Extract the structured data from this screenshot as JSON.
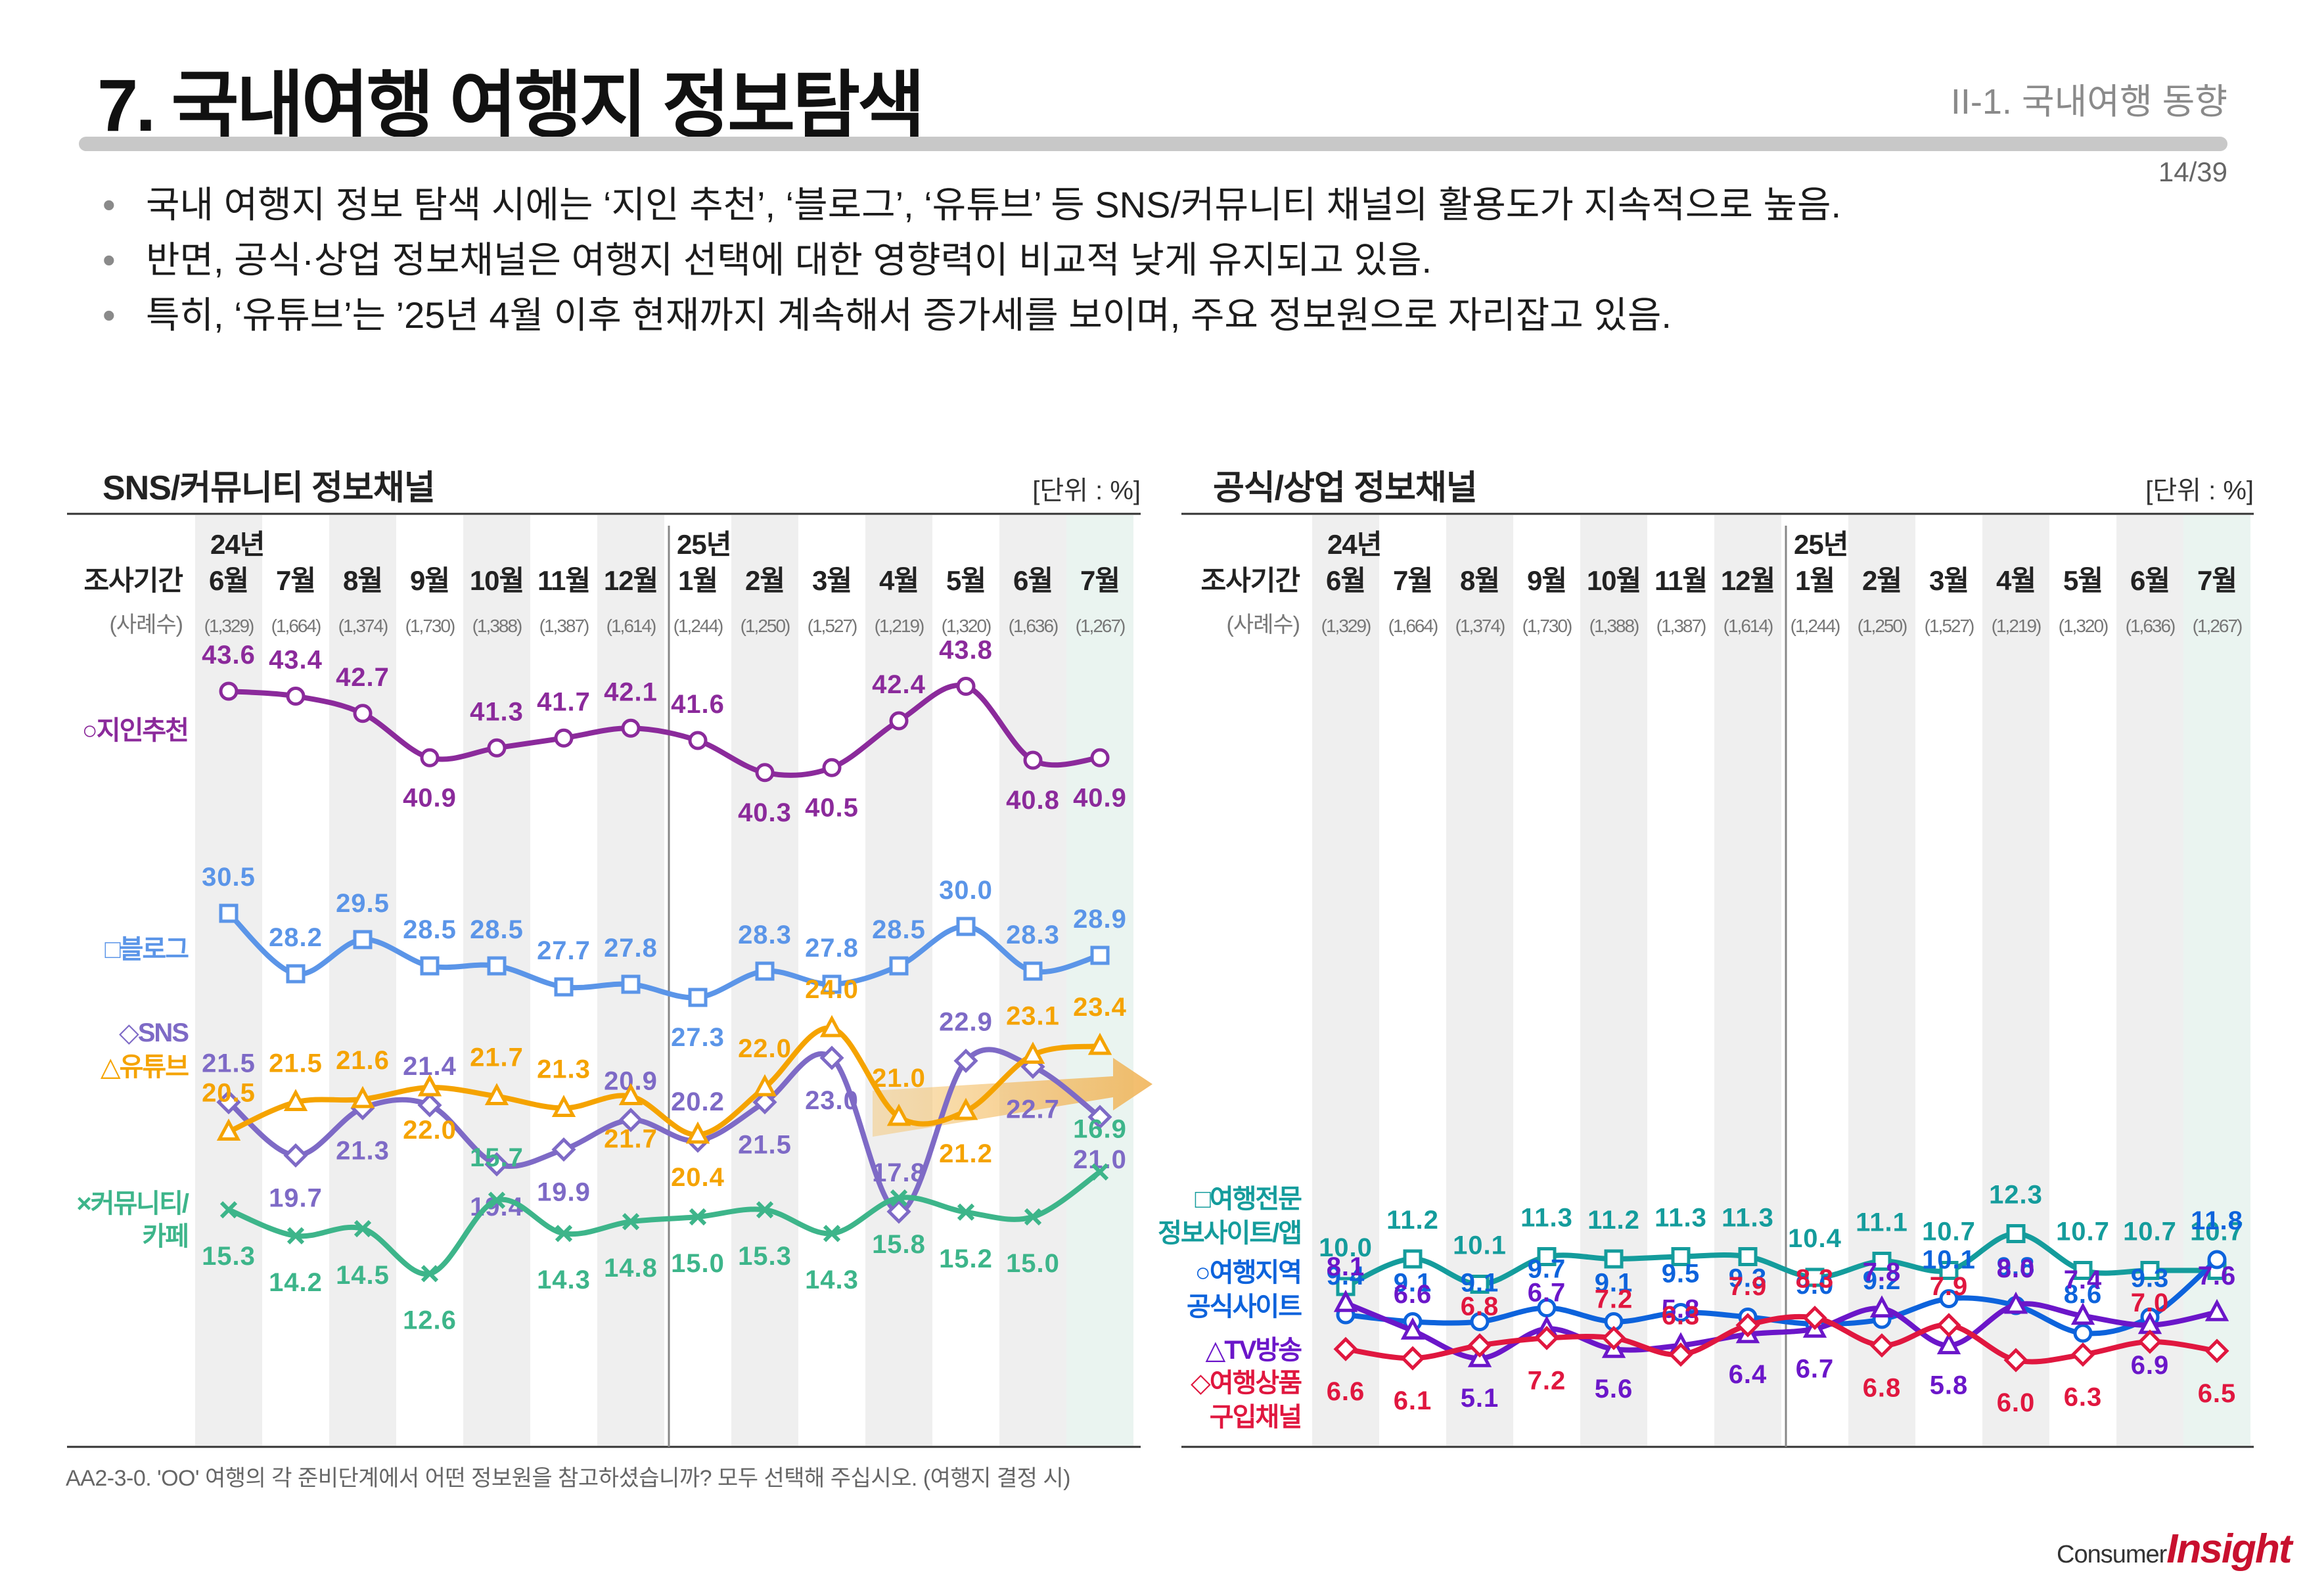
{
  "header": {
    "title": "7. 국내여행 여행지 정보탐색",
    "section": "II-1. 국내여행 동향",
    "page": "14/39"
  },
  "bullets": [
    "국내 여행지 정보 탐색 시에는 ‘지인 추천’, ‘블로그’, ‘유튜브’ 등 SNS/커뮤니티 채널의 활용도가 지속적으로 높음.",
    "반면, 공식·상업 정보채널은 여행지 선택에 대한 영향력이 비교적 낮게 유지되고 있음.",
    "특히, ‘유튜브’는 ’25년 4월 이후 현재까지 계속해서 증가세를 보이며, 주요 정보원으로 자리잡고 있음."
  ],
  "footnote": "AA2-3-0. 'OO' 여행의 각 준비단계에서 어떤 정보원을 참고하셨습니까? 모두 선택해 주십시오. (여행지 결정 시)",
  "logo": {
    "part1": "Consumer",
    "part2": "Insight"
  },
  "colors": {
    "purple": "#8B2A9B",
    "blue_light": "#5B95E8",
    "sns": "#7E6AC6",
    "youtube": "#F5A300",
    "green": "#3DB58A",
    "teal": "#149C9C",
    "blue": "#0D63DC",
    "violet": "#6B16C9",
    "red": "#E0173F",
    "title_bar": "#c8c8c8",
    "band": "#efefef",
    "recent_band": "#eaf4f0"
  },
  "chart_data": [
    {
      "type": "line",
      "title": "SNS/커뮤니티 정보채널",
      "unit": "[단위 : %]",
      "period_label": "조사기간",
      "samples_label": "(사례수)",
      "year_labels": [
        "24년",
        "25년"
      ],
      "categories": [
        "6월",
        "7월",
        "8월",
        "9월",
        "10월",
        "11월",
        "12월",
        "1월",
        "2월",
        "3월",
        "4월",
        "5월",
        "6월",
        "7월"
      ],
      "samples": [
        "(1,329)",
        "(1,664)",
        "(1,374)",
        "(1,730)",
        "(1,388)",
        "(1,387)",
        "(1,614)",
        "(1,244)",
        "(1,250)",
        "(1,527)",
        "(1,219)",
        "(1,320)",
        "(1,636)",
        "(1,267)"
      ],
      "series": [
        {
          "name": "○지인추천",
          "label_lines": [
            "○지인추천"
          ],
          "color": "#8B2A9B",
          "marker": "circle",
          "values": [
            43.6,
            43.4,
            42.7,
            40.9,
            41.3,
            41.7,
            42.1,
            41.6,
            40.3,
            40.5,
            42.4,
            43.8,
            40.8,
            40.9
          ]
        },
        {
          "name": "□블로그",
          "label_lines": [
            "□블로그"
          ],
          "color": "#5B95E8",
          "marker": "square",
          "values": [
            30.5,
            28.2,
            29.5,
            28.5,
            28.5,
            27.7,
            27.8,
            27.3,
            28.3,
            27.8,
            28.5,
            30.0,
            28.3,
            28.9
          ]
        },
        {
          "name": "◇SNS",
          "label_lines": [
            "◇SNS"
          ],
          "color": "#7E6AC6",
          "marker": "diamond",
          "values": [
            21.5,
            19.7,
            21.3,
            21.4,
            19.4,
            19.9,
            20.9,
            20.2,
            21.5,
            23.0,
            17.8,
            22.9,
            22.7,
            21.0
          ]
        },
        {
          "name": "△유튜브",
          "label_lines": [
            "△유튜브"
          ],
          "color": "#F5A300",
          "marker": "triangle",
          "values": [
            20.5,
            21.5,
            21.6,
            22.0,
            21.7,
            21.3,
            21.7,
            20.4,
            22.0,
            24.0,
            21.0,
            21.2,
            23.1,
            23.4
          ]
        },
        {
          "name": "×커뮤니티/카페",
          "label_lines": [
            "×커뮤니티/",
            "카페"
          ],
          "color": "#3DB58A",
          "marker": "cross",
          "values": [
            15.3,
            14.2,
            14.5,
            12.6,
            15.7,
            14.3,
            14.8,
            15.0,
            15.3,
            14.3,
            15.8,
            15.2,
            15.0,
            16.9
          ]
        }
      ]
    },
    {
      "type": "line",
      "title": "공식/상업 정보채널",
      "unit": "[단위 : %]",
      "period_label": "조사기간",
      "samples_label": "(사례수)",
      "year_labels": [
        "24년",
        "25년"
      ],
      "categories": [
        "6월",
        "7월",
        "8월",
        "9월",
        "10월",
        "11월",
        "12월",
        "1월",
        "2월",
        "3월",
        "4월",
        "5월",
        "6월",
        "7월"
      ],
      "samples": [
        "(1,329)",
        "(1,664)",
        "(1,374)",
        "(1,730)",
        "(1,388)",
        "(1,387)",
        "(1,614)",
        "(1,244)",
        "(1,250)",
        "(1,527)",
        "(1,219)",
        "(1,320)",
        "(1,636)",
        "(1,267)"
      ],
      "series": [
        {
          "name": "□여행전문 정보사이트/앱",
          "label_lines": [
            "□여행전문",
            "정보사이트/앱"
          ],
          "color": "#149C9C",
          "marker": "square",
          "values": [
            10.0,
            11.2,
            10.1,
            11.3,
            11.2,
            11.3,
            11.3,
            10.4,
            11.1,
            10.7,
            12.3,
            10.7,
            10.7,
            10.7
          ]
        },
        {
          "name": "○여행지역 공식사이트",
          "label_lines": [
            "○여행지역",
            "공식사이트"
          ],
          "color": "#0D63DC",
          "marker": "circle",
          "values": [
            9.4,
            9.1,
            9.1,
            9.7,
            9.1,
            9.5,
            9.3,
            9.0,
            9.2,
            10.1,
            9.8,
            8.6,
            9.3,
            11.8
          ]
        },
        {
          "name": "△TV방송",
          "label_lines": [
            "△TV방송"
          ],
          "color": "#6B16C9",
          "marker": "triangle",
          "values": [
            8.1,
            6.6,
            5.1,
            6.7,
            5.6,
            5.8,
            6.4,
            6.7,
            7.8,
            5.8,
            8.0,
            7.4,
            6.9,
            7.6
          ]
        },
        {
          "name": "◇여행상품 구입채널",
          "label_lines": [
            "◇여행상품",
            "구입채널"
          ],
          "color": "#E0173F",
          "marker": "diamond",
          "values": [
            6.6,
            6.1,
            6.8,
            7.2,
            7.2,
            6.3,
            7.9,
            8.3,
            6.8,
            7.9,
            6.0,
            6.3,
            7.0,
            6.5
          ]
        }
      ]
    }
  ]
}
